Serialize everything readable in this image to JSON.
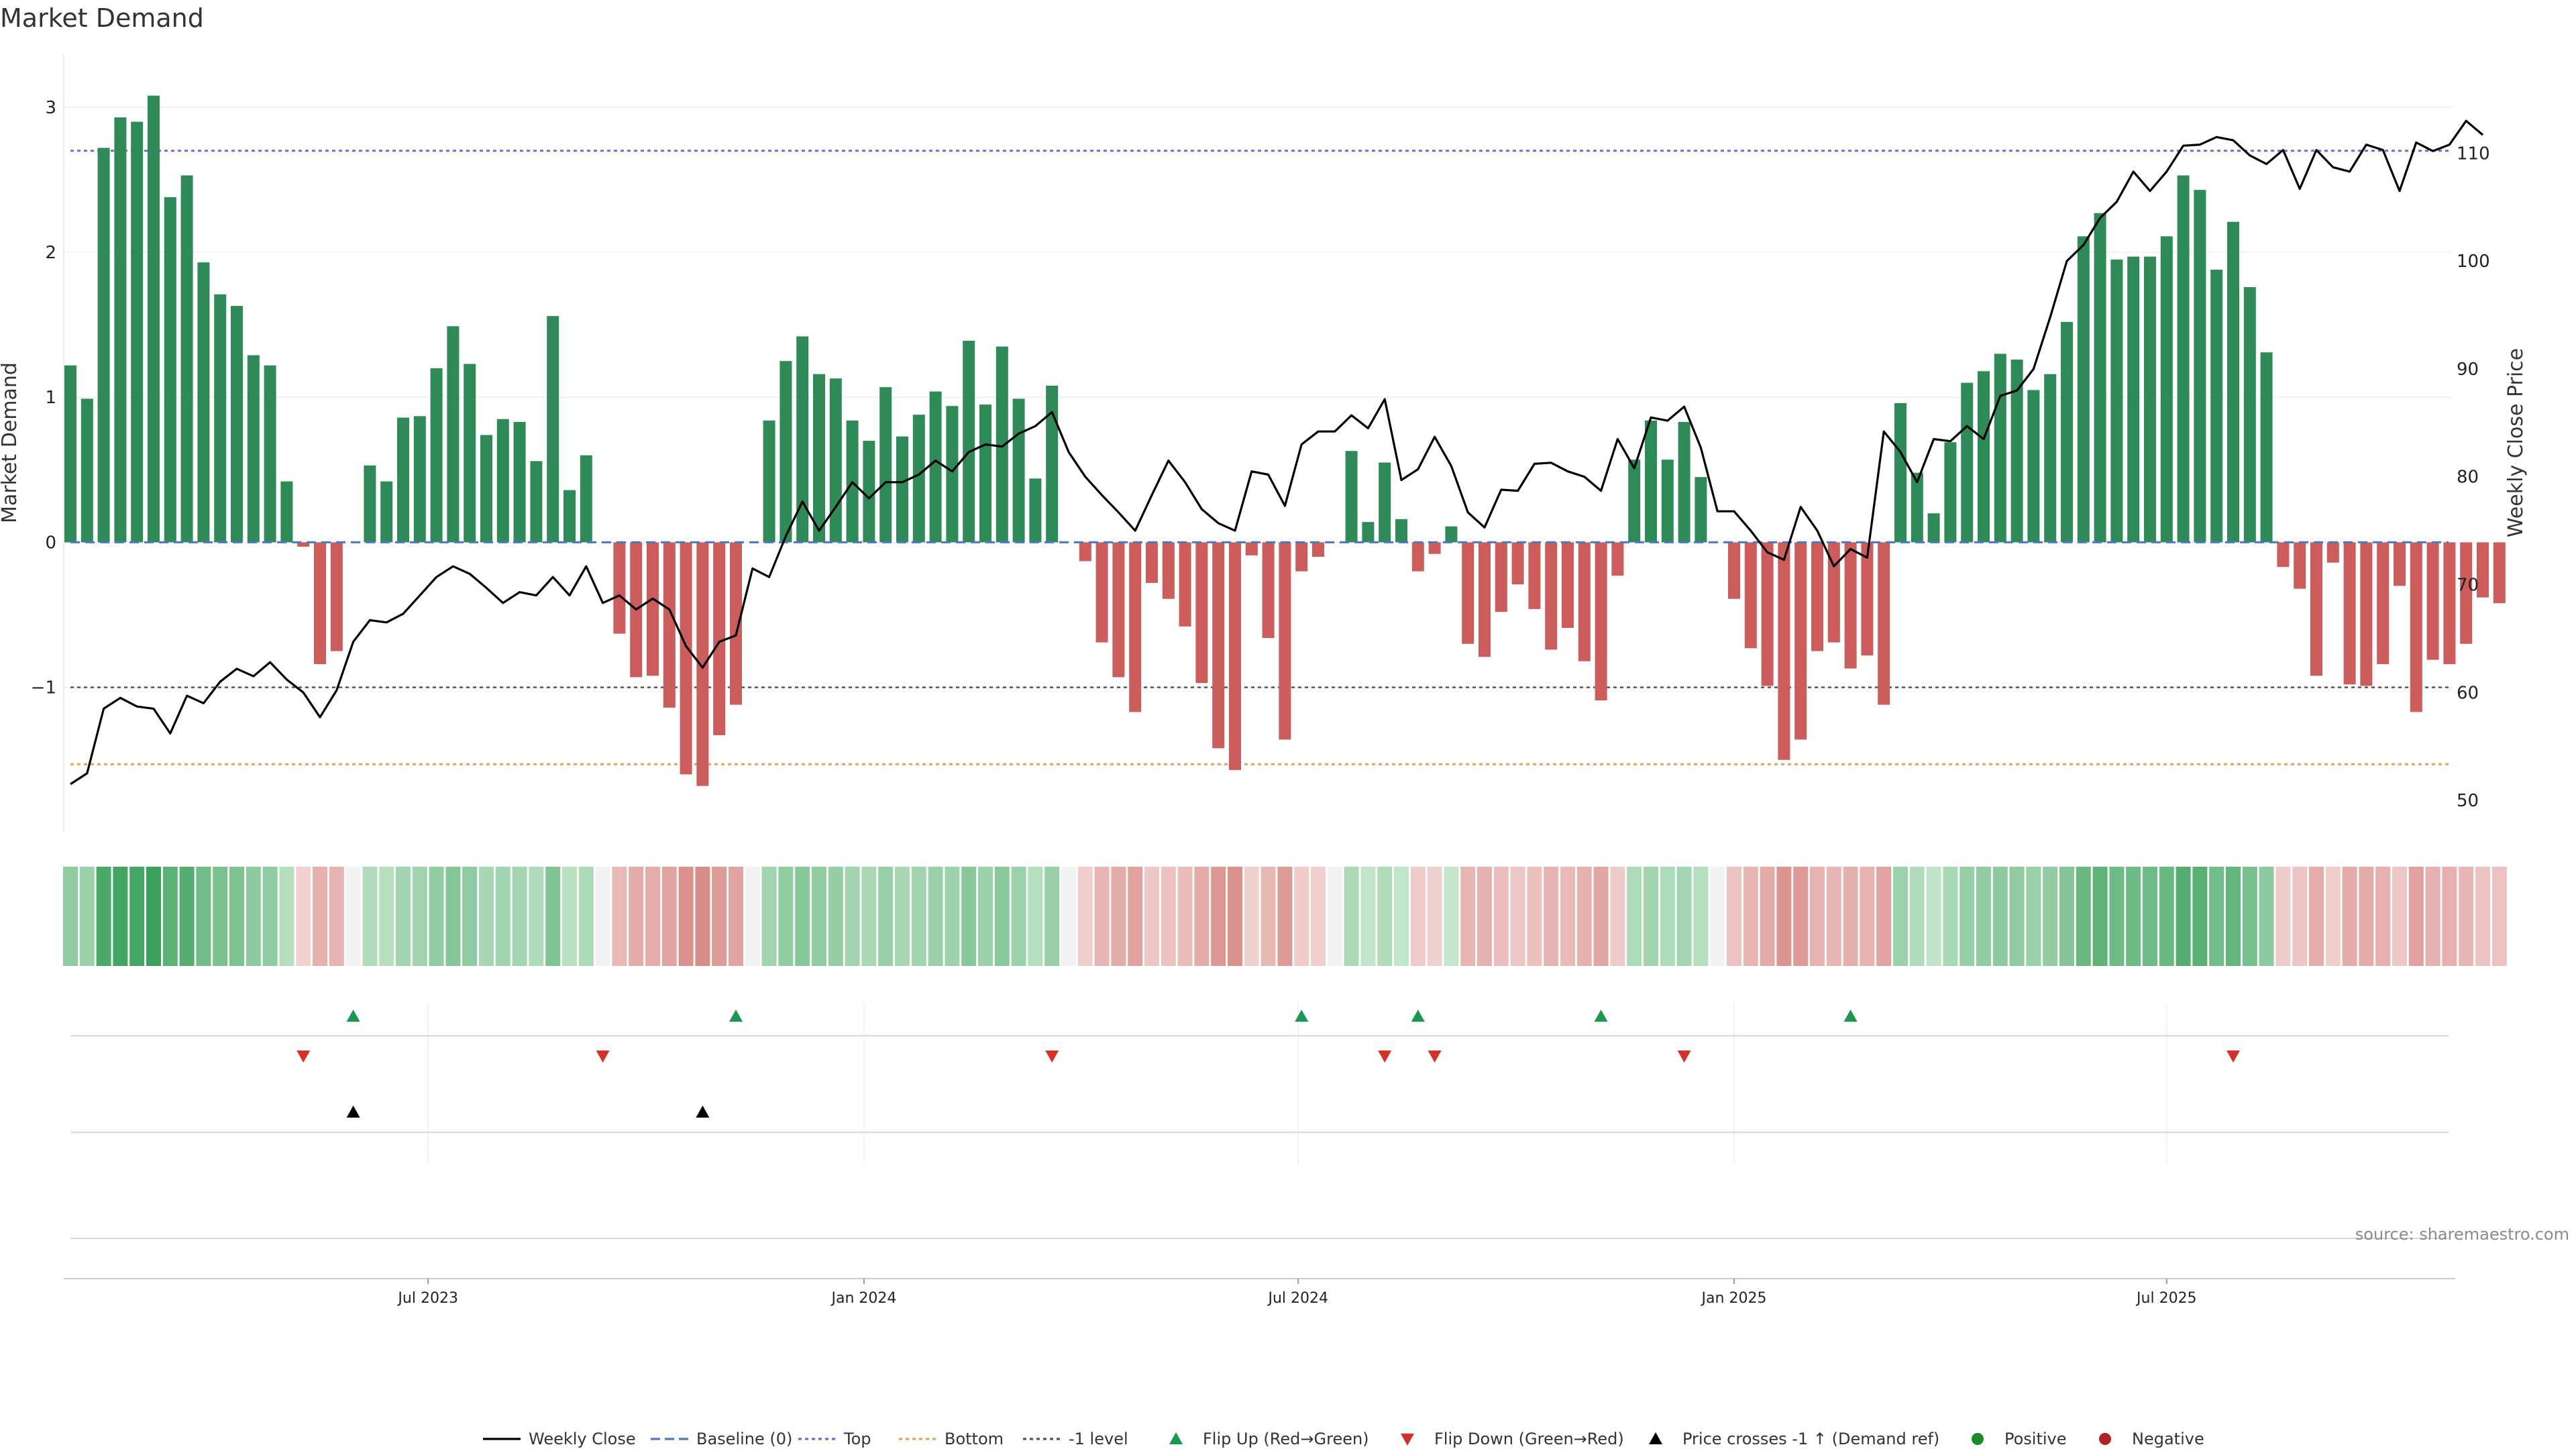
{
  "title": "Market Demand",
  "source_note": "source: sharemaestro.com",
  "colors": {
    "positive": "#2e8b57",
    "negative": "#cd5c5c",
    "line": "#000000",
    "top": "#6b6bd6",
    "bottom": "#e8a24f",
    "minus1": "#555555",
    "baseline": "#4a78c2",
    "flip_up": "#1a9850",
    "flip_down": "#d73027",
    "cross": "#000000",
    "legend_positive": "#1a8a2a",
    "legend_negative": "#b22222"
  },
  "chart_data": {
    "type": "bar",
    "title": "Market Demand",
    "ylabel": "Market Demand",
    "y2label": "Weekly Close Price",
    "ylim": [
      -1.95,
      3.3
    ],
    "y2lim": [
      47.7,
      118.3
    ],
    "y_ticks": [
      -1,
      0,
      1,
      2,
      3
    ],
    "y2_ticks": [
      50,
      60,
      70,
      80,
      90,
      100,
      110
    ],
    "x_ticks": [
      {
        "label": "Jul 2023",
        "index": 21.5
      },
      {
        "label": "Jan 2024",
        "index": 47.7
      },
      {
        "label": "Jul 2024",
        "index": 73.8
      },
      {
        "label": "Jan 2025",
        "index": 100.0
      },
      {
        "label": "Jul 2025",
        "index": 126.0
      }
    ],
    "reference_lines": {
      "baseline": 0,
      "top": 2.7,
      "bottom": -1.53,
      "minus_one": -1
    },
    "demand": [
      1.22,
      0.99,
      2.72,
      2.93,
      2.9,
      3.08,
      2.38,
      2.53,
      1.93,
      1.71,
      1.63,
      1.29,
      1.22,
      0.42,
      -0.03,
      -0.84,
      -0.75,
      0,
      0.53,
      0.42,
      0.86,
      0.87,
      1.2,
      1.49,
      1.23,
      0.74,
      0.85,
      0.83,
      0.56,
      1.56,
      0.36,
      0.6,
      0,
      -0.63,
      -0.93,
      -0.92,
      -1.14,
      -1.6,
      -1.68,
      -1.33,
      -1.12,
      0,
      0.84,
      1.25,
      1.42,
      1.16,
      1.13,
      0.84,
      0.7,
      1.07,
      0.73,
      0.88,
      1.04,
      0.94,
      1.39,
      0.95,
      1.35,
      0.99,
      0.44,
      1.08,
      0,
      -0.13,
      -0.69,
      -0.93,
      -1.17,
      -0.28,
      -0.39,
      -0.58,
      -0.97,
      -1.42,
      -1.57,
      -0.09,
      -0.66,
      -1.36,
      -0.2,
      -0.1,
      0,
      0.63,
      0.14,
      0.55,
      0.16,
      -0.2,
      -0.08,
      0.11,
      -0.7,
      -0.79,
      -0.48,
      -0.29,
      -0.46,
      -0.74,
      -0.59,
      -0.82,
      -1.09,
      -0.23,
      0.57,
      0.84,
      0.57,
      0.83,
      0.45,
      0,
      -0.39,
      -0.73,
      -0.99,
      -1.5,
      -1.36,
      -0.75,
      -0.69,
      -0.87,
      -0.78,
      -1.12,
      0.96,
      0.48,
      0.2,
      0.69,
      1.1,
      1.18,
      1.3,
      1.26,
      1.05,
      1.16,
      1.52,
      2.11,
      2.27,
      1.95,
      1.97,
      1.97,
      2.11,
      2.53,
      2.43,
      1.88,
      2.21,
      1.76,
      1.31,
      -0.17,
      -0.32,
      -0.92,
      -0.14,
      -0.98,
      -0.99,
      -0.84,
      -0.3,
      -1.17,
      -0.81,
      -0.84,
      -0.7,
      -0.38,
      -0.42
    ],
    "weekly_close": [
      51.5,
      52.5,
      58.5,
      59.5,
      58.7,
      58.5,
      56.2,
      59.7,
      59.0,
      61.0,
      62.2,
      61.5,
      62.8,
      61.2,
      60.0,
      57.7,
      60.2,
      64.7,
      66.7,
      66.5,
      67.3,
      69.0,
      70.7,
      71.7,
      71.0,
      69.7,
      68.3,
      69.3,
      69.0,
      70.7,
      69.0,
      71.7,
      68.3,
      69.0,
      67.7,
      68.7,
      67.7,
      64.3,
      62.3,
      64.7,
      65.3,
      71.5,
      70.7,
      74.5,
      77.7,
      75.0,
      77.2,
      79.5,
      78.0,
      79.5,
      79.5,
      80.2,
      81.5,
      80.5,
      82.3,
      83.0,
      82.8,
      84.0,
      84.7,
      86.0,
      82.3,
      80.0,
      78.3,
      76.7,
      75.0,
      78.3,
      81.5,
      79.5,
      77.0,
      75.7,
      75.0,
      80.5,
      80.2,
      77.3,
      83.0,
      84.2,
      84.2,
      85.7,
      84.5,
      87.2,
      79.7,
      80.7,
      83.7,
      81.0,
      76.7,
      75.3,
      78.8,
      78.7,
      81.2,
      81.3,
      80.5,
      80.0,
      78.7,
      83.5,
      80.8,
      85.5,
      85.2,
      86.5,
      82.7,
      76.8,
      76.8,
      75.0,
      73.0,
      72.3,
      77.2,
      75.0,
      71.7,
      73.3,
      72.5,
      84.2,
      82.3,
      79.5,
      83.5,
      83.3,
      84.7,
      83.5,
      87.5,
      88.0,
      90.0,
      94.8,
      100.0,
      101.5,
      104.0,
      105.5,
      108.3,
      106.5,
      108.3,
      110.7,
      110.8,
      111.5,
      111.2,
      109.8,
      109.0,
      110.3,
      106.7,
      110.3,
      108.7,
      108.3,
      110.8,
      110.3,
      106.5,
      111.0,
      110.2,
      110.8,
      113.0,
      111.7
    ],
    "flip_up_indices": [
      17,
      40,
      74,
      81,
      92,
      107
    ],
    "flip_down_indices": [
      14,
      32,
      59,
      79,
      82,
      97,
      130
    ],
    "price_cross_indices": [
      17,
      38
    ]
  },
  "legend": [
    {
      "label": "Weekly Close",
      "marker": "line-solid"
    },
    {
      "label": "Baseline (0)",
      "marker": "line-dashed-blue"
    },
    {
      "label": "Top",
      "marker": "line-dotted-purple"
    },
    {
      "label": "Bottom",
      "marker": "line-dotted-orange"
    },
    {
      "label": "-1 level",
      "marker": "line-dotted-gray"
    },
    {
      "label": "Flip Up (Red→Green)",
      "marker": "triangle-up-green"
    },
    {
      "label": "Flip Down (Green→Red)",
      "marker": "triangle-down-red"
    },
    {
      "label": "Price crosses -1 ↑ (Demand ref)",
      "marker": "triangle-up-black"
    },
    {
      "label": "Positive",
      "marker": "dot-green"
    },
    {
      "label": "Negative",
      "marker": "dot-red"
    }
  ]
}
